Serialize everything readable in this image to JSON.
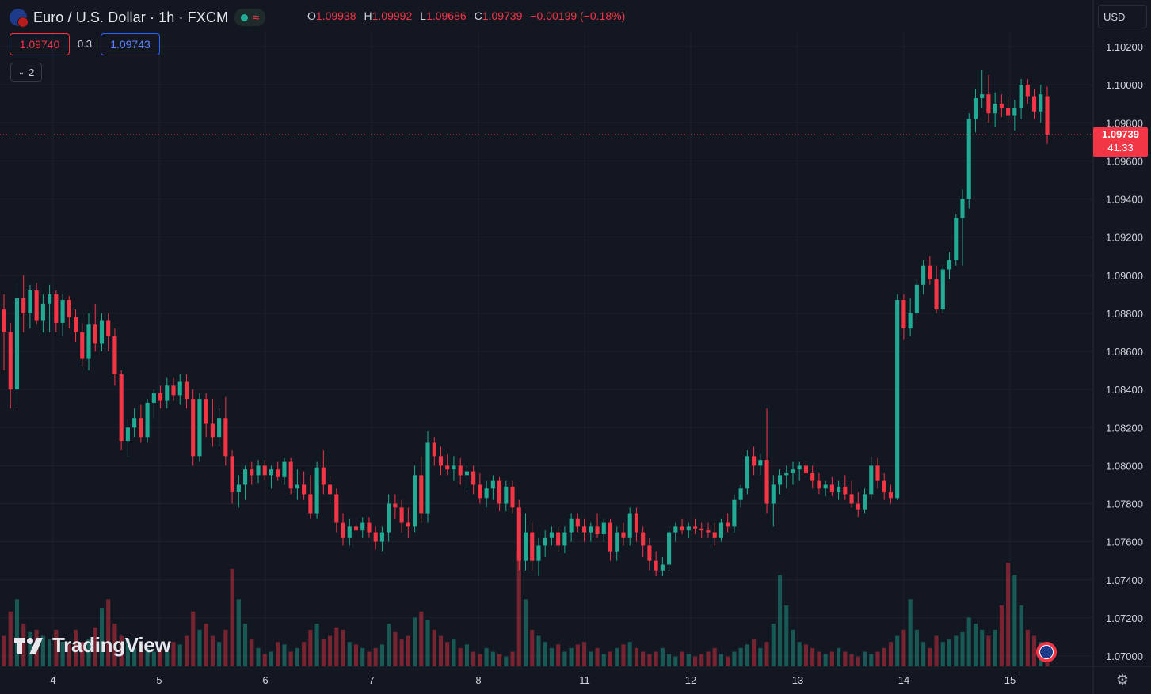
{
  "header": {
    "symbol_title": "Euro / U.S. Dollar · 1h · FXCM",
    "market_status_icon": "green-dot-icon",
    "data_icon": "wave-icon",
    "ohlc": {
      "o_label": "O",
      "o_value": "1.09938",
      "h_label": "H",
      "h_value": "1.09992",
      "l_label": "L",
      "l_value": "1.09686",
      "c_label": "C",
      "c_value": "1.09739",
      "change": "−0.00199 (−0.18%)"
    },
    "sell_price": "1.09740",
    "spread": "0.3",
    "buy_price": "1.09743",
    "indicators_toggle": "2"
  },
  "currency_selector": "USD",
  "last_price": {
    "value": "1.09739",
    "countdown": "41:33"
  },
  "brand": "TradingView",
  "colors": {
    "up": "#22ab94",
    "down": "#f23645",
    "background": "#131722",
    "grid": "#1e222d"
  },
  "chart_data": {
    "type": "candlestick",
    "y_ticks": [
      "1.10200",
      "1.10000",
      "1.09800",
      "1.09600",
      "1.09400",
      "1.09200",
      "1.09000",
      "1.08800",
      "1.08600",
      "1.08400",
      "1.08200",
      "1.08000",
      "1.07800",
      "1.07600",
      "1.07400",
      "1.07200",
      "1.07000"
    ],
    "ylim": [
      1.07,
      1.102
    ],
    "x_ticks": [
      "4",
      "5",
      "6",
      "7",
      "8",
      "11",
      "12",
      "13",
      "14",
      "15"
    ],
    "last_price": 1.09739,
    "candles": [
      {
        "o": 1.0882,
        "h": 1.089,
        "l": 1.085,
        "c": 1.087
      },
      {
        "o": 1.087,
        "h": 1.0875,
        "l": 1.083,
        "c": 1.084
      },
      {
        "o": 1.084,
        "h": 1.0895,
        "l": 1.083,
        "c": 1.0888
      },
      {
        "o": 1.0888,
        "h": 1.09,
        "l": 1.087,
        "c": 1.088
      },
      {
        "o": 1.088,
        "h": 1.0895,
        "l": 1.0872,
        "c": 1.0892
      },
      {
        "o": 1.0892,
        "h": 1.0896,
        "l": 1.0874,
        "c": 1.0876
      },
      {
        "o": 1.0876,
        "h": 1.089,
        "l": 1.087,
        "c": 1.0885
      },
      {
        "o": 1.0885,
        "h": 1.0895,
        "l": 1.087,
        "c": 1.089
      },
      {
        "o": 1.089,
        "h": 1.0892,
        "l": 1.087,
        "c": 1.0875
      },
      {
        "o": 1.0875,
        "h": 1.089,
        "l": 1.0868,
        "c": 1.0887
      },
      {
        "o": 1.0887,
        "h": 1.0889,
        "l": 1.0872,
        "c": 1.0878
      },
      {
        "o": 1.0878,
        "h": 1.0882,
        "l": 1.0865,
        "c": 1.087
      },
      {
        "o": 1.087,
        "h": 1.0875,
        "l": 1.0852,
        "c": 1.0856
      },
      {
        "o": 1.0856,
        "h": 1.088,
        "l": 1.085,
        "c": 1.0874
      },
      {
        "o": 1.0874,
        "h": 1.0885,
        "l": 1.086,
        "c": 1.0864
      },
      {
        "o": 1.0864,
        "h": 1.088,
        "l": 1.086,
        "c": 1.0876
      },
      {
        "o": 1.0876,
        "h": 1.088,
        "l": 1.086,
        "c": 1.0868
      },
      {
        "o": 1.0868,
        "h": 1.0872,
        "l": 1.0842,
        "c": 1.0848
      },
      {
        "o": 1.0848,
        "h": 1.085,
        "l": 1.0808,
        "c": 1.0813
      },
      {
        "o": 1.0813,
        "h": 1.0825,
        "l": 1.0805,
        "c": 1.082
      },
      {
        "o": 1.082,
        "h": 1.083,
        "l": 1.0815,
        "c": 1.0825
      },
      {
        "o": 1.0825,
        "h": 1.0832,
        "l": 1.0812,
        "c": 1.0815
      },
      {
        "o": 1.0815,
        "h": 1.0835,
        "l": 1.0812,
        "c": 1.0833
      },
      {
        "o": 1.0833,
        "h": 1.084,
        "l": 1.0825,
        "c": 1.0838
      },
      {
        "o": 1.0838,
        "h": 1.0842,
        "l": 1.083,
        "c": 1.0834
      },
      {
        "o": 1.0834,
        "h": 1.0846,
        "l": 1.083,
        "c": 1.0842
      },
      {
        "o": 1.0842,
        "h": 1.0846,
        "l": 1.0834,
        "c": 1.0837
      },
      {
        "o": 1.0837,
        "h": 1.0848,
        "l": 1.0832,
        "c": 1.0844
      },
      {
        "o": 1.0844,
        "h": 1.0848,
        "l": 1.083,
        "c": 1.0835
      },
      {
        "o": 1.0835,
        "h": 1.084,
        "l": 1.08,
        "c": 1.0805
      },
      {
        "o": 1.0805,
        "h": 1.0838,
        "l": 1.0802,
        "c": 1.0835
      },
      {
        "o": 1.0835,
        "h": 1.0838,
        "l": 1.0815,
        "c": 1.0822
      },
      {
        "o": 1.0822,
        "h": 1.0835,
        "l": 1.081,
        "c": 1.0815
      },
      {
        "o": 1.0815,
        "h": 1.083,
        "l": 1.081,
        "c": 1.0825
      },
      {
        "o": 1.0825,
        "h": 1.0836,
        "l": 1.08,
        "c": 1.0805
      },
      {
        "o": 1.0805,
        "h": 1.0808,
        "l": 1.078,
        "c": 1.0786
      },
      {
        "o": 1.0786,
        "h": 1.0795,
        "l": 1.0778,
        "c": 1.079
      },
      {
        "o": 1.079,
        "h": 1.08,
        "l": 1.0782,
        "c": 1.0798
      },
      {
        "o": 1.0798,
        "h": 1.0802,
        "l": 1.079,
        "c": 1.0795
      },
      {
        "o": 1.0795,
        "h": 1.0803,
        "l": 1.0791,
        "c": 1.08
      },
      {
        "o": 1.08,
        "h": 1.0803,
        "l": 1.0792,
        "c": 1.0795
      },
      {
        "o": 1.0795,
        "h": 1.08,
        "l": 1.0788,
        "c": 1.0798
      },
      {
        "o": 1.0798,
        "h": 1.0802,
        "l": 1.0792,
        "c": 1.0794
      },
      {
        "o": 1.0794,
        "h": 1.0804,
        "l": 1.079,
        "c": 1.0802
      },
      {
        "o": 1.0802,
        "h": 1.0804,
        "l": 1.0785,
        "c": 1.0788
      },
      {
        "o": 1.0788,
        "h": 1.0798,
        "l": 1.0782,
        "c": 1.079
      },
      {
        "o": 1.079,
        "h": 1.0797,
        "l": 1.0782,
        "c": 1.0785
      },
      {
        "o": 1.0785,
        "h": 1.0795,
        "l": 1.0772,
        "c": 1.0775
      },
      {
        "o": 1.0775,
        "h": 1.0802,
        "l": 1.0772,
        "c": 1.0799
      },
      {
        "o": 1.0799,
        "h": 1.0808,
        "l": 1.0785,
        "c": 1.079
      },
      {
        "o": 1.079,
        "h": 1.0795,
        "l": 1.078,
        "c": 1.0785
      },
      {
        "o": 1.0785,
        "h": 1.0788,
        "l": 1.0765,
        "c": 1.077
      },
      {
        "o": 1.077,
        "h": 1.0775,
        "l": 1.0758,
        "c": 1.0762
      },
      {
        "o": 1.0762,
        "h": 1.0772,
        "l": 1.0758,
        "c": 1.0768
      },
      {
        "o": 1.0768,
        "h": 1.0772,
        "l": 1.0762,
        "c": 1.0766
      },
      {
        "o": 1.0766,
        "h": 1.0773,
        "l": 1.0762,
        "c": 1.077
      },
      {
        "o": 1.077,
        "h": 1.0773,
        "l": 1.0762,
        "c": 1.0765
      },
      {
        "o": 1.0765,
        "h": 1.0768,
        "l": 1.0756,
        "c": 1.076
      },
      {
        "o": 1.076,
        "h": 1.0768,
        "l": 1.0755,
        "c": 1.0765
      },
      {
        "o": 1.0765,
        "h": 1.0785,
        "l": 1.076,
        "c": 1.078
      },
      {
        "o": 1.078,
        "h": 1.0785,
        "l": 1.0772,
        "c": 1.0778
      },
      {
        "o": 1.0778,
        "h": 1.0782,
        "l": 1.0765,
        "c": 1.077
      },
      {
        "o": 1.077,
        "h": 1.0778,
        "l": 1.0762,
        "c": 1.0768
      },
      {
        "o": 1.0768,
        "h": 1.08,
        "l": 1.0765,
        "c": 1.0795
      },
      {
        "o": 1.0795,
        "h": 1.0805,
        "l": 1.077,
        "c": 1.0775
      },
      {
        "o": 1.0775,
        "h": 1.0818,
        "l": 1.077,
        "c": 1.0812
      },
      {
        "o": 1.0812,
        "h": 1.0815,
        "l": 1.08,
        "c": 1.0805
      },
      {
        "o": 1.0805,
        "h": 1.081,
        "l": 1.0795,
        "c": 1.08
      },
      {
        "o": 1.08,
        "h": 1.0806,
        "l": 1.0795,
        "c": 1.0798
      },
      {
        "o": 1.0798,
        "h": 1.0805,
        "l": 1.0792,
        "c": 1.08
      },
      {
        "o": 1.08,
        "h": 1.0804,
        "l": 1.079,
        "c": 1.0795
      },
      {
        "o": 1.0795,
        "h": 1.08,
        "l": 1.0788,
        "c": 1.0797
      },
      {
        "o": 1.0797,
        "h": 1.08,
        "l": 1.0785,
        "c": 1.079
      },
      {
        "o": 1.079,
        "h": 1.0796,
        "l": 1.078,
        "c": 1.0783
      },
      {
        "o": 1.0783,
        "h": 1.0792,
        "l": 1.0778,
        "c": 1.0788
      },
      {
        "o": 1.0788,
        "h": 1.0795,
        "l": 1.0782,
        "c": 1.0792
      },
      {
        "o": 1.0792,
        "h": 1.0794,
        "l": 1.0776,
        "c": 1.078
      },
      {
        "o": 1.078,
        "h": 1.0792,
        "l": 1.0776,
        "c": 1.0789
      },
      {
        "o": 1.0789,
        "h": 1.0792,
        "l": 1.0775,
        "c": 1.0778
      },
      {
        "o": 1.0778,
        "h": 1.0782,
        "l": 1.0745,
        "c": 1.075
      },
      {
        "o": 1.075,
        "h": 1.0775,
        "l": 1.0745,
        "c": 1.0765
      },
      {
        "o": 1.0765,
        "h": 1.077,
        "l": 1.0745,
        "c": 1.075
      },
      {
        "o": 1.075,
        "h": 1.0762,
        "l": 1.0742,
        "c": 1.0758
      },
      {
        "o": 1.0758,
        "h": 1.0766,
        "l": 1.0752,
        "c": 1.0762
      },
      {
        "o": 1.0762,
        "h": 1.0768,
        "l": 1.0758,
        "c": 1.0765
      },
      {
        "o": 1.0765,
        "h": 1.0768,
        "l": 1.0755,
        "c": 1.0758
      },
      {
        "o": 1.0758,
        "h": 1.0768,
        "l": 1.0754,
        "c": 1.0765
      },
      {
        "o": 1.0765,
        "h": 1.0775,
        "l": 1.076,
        "c": 1.0772
      },
      {
        "o": 1.0772,
        "h": 1.0775,
        "l": 1.0765,
        "c": 1.0768
      },
      {
        "o": 1.0768,
        "h": 1.0772,
        "l": 1.076,
        "c": 1.0765
      },
      {
        "o": 1.0765,
        "h": 1.077,
        "l": 1.076,
        "c": 1.0768
      },
      {
        "o": 1.0768,
        "h": 1.0775,
        "l": 1.0762,
        "c": 1.0764
      },
      {
        "o": 1.0764,
        "h": 1.0772,
        "l": 1.076,
        "c": 1.077
      },
      {
        "o": 1.077,
        "h": 1.0772,
        "l": 1.075,
        "c": 1.0755
      },
      {
        "o": 1.0755,
        "h": 1.0768,
        "l": 1.075,
        "c": 1.0765
      },
      {
        "o": 1.0765,
        "h": 1.077,
        "l": 1.0758,
        "c": 1.0762
      },
      {
        "o": 1.0762,
        "h": 1.0778,
        "l": 1.0758,
        "c": 1.0775
      },
      {
        "o": 1.0775,
        "h": 1.0778,
        "l": 1.076,
        "c": 1.0765
      },
      {
        "o": 1.0765,
        "h": 1.0768,
        "l": 1.0752,
        "c": 1.0758
      },
      {
        "o": 1.0758,
        "h": 1.0762,
        "l": 1.0745,
        "c": 1.075
      },
      {
        "o": 1.075,
        "h": 1.0755,
        "l": 1.0742,
        "c": 1.0745
      },
      {
        "o": 1.0745,
        "h": 1.0752,
        "l": 1.0742,
        "c": 1.0748
      },
      {
        "o": 1.0748,
        "h": 1.0768,
        "l": 1.0745,
        "c": 1.0765
      },
      {
        "o": 1.0765,
        "h": 1.077,
        "l": 1.076,
        "c": 1.0768
      },
      {
        "o": 1.0768,
        "h": 1.0772,
        "l": 1.0764,
        "c": 1.0766
      },
      {
        "o": 1.0766,
        "h": 1.077,
        "l": 1.0762,
        "c": 1.0768
      },
      {
        "o": 1.0768,
        "h": 1.0772,
        "l": 1.0764,
        "c": 1.0767
      },
      {
        "o": 1.0767,
        "h": 1.077,
        "l": 1.0762,
        "c": 1.0766
      },
      {
        "o": 1.0766,
        "h": 1.077,
        "l": 1.0762,
        "c": 1.0765
      },
      {
        "o": 1.0765,
        "h": 1.077,
        "l": 1.0758,
        "c": 1.0762
      },
      {
        "o": 1.0762,
        "h": 1.0772,
        "l": 1.076,
        "c": 1.077
      },
      {
        "o": 1.077,
        "h": 1.0775,
        "l": 1.0765,
        "c": 1.0768
      },
      {
        "o": 1.0768,
        "h": 1.0785,
        "l": 1.0765,
        "c": 1.0782
      },
      {
        "o": 1.0782,
        "h": 1.079,
        "l": 1.0778,
        "c": 1.0788
      },
      {
        "o": 1.0788,
        "h": 1.0808,
        "l": 1.0785,
        "c": 1.0805
      },
      {
        "o": 1.0805,
        "h": 1.081,
        "l": 1.0795,
        "c": 1.08
      },
      {
        "o": 1.08,
        "h": 1.0806,
        "l": 1.0795,
        "c": 1.0803
      },
      {
        "o": 1.0803,
        "h": 1.083,
        "l": 1.0775,
        "c": 1.078
      },
      {
        "o": 1.078,
        "h": 1.0795,
        "l": 1.0768,
        "c": 1.079
      },
      {
        "o": 1.079,
        "h": 1.0798,
        "l": 1.0785,
        "c": 1.0795
      },
      {
        "o": 1.0795,
        "h": 1.08,
        "l": 1.0788,
        "c": 1.0796
      },
      {
        "o": 1.0796,
        "h": 1.0802,
        "l": 1.079,
        "c": 1.0798
      },
      {
        "o": 1.0798,
        "h": 1.0802,
        "l": 1.0792,
        "c": 1.08
      },
      {
        "o": 1.08,
        "h": 1.0802,
        "l": 1.0794,
        "c": 1.0796
      },
      {
        "o": 1.0796,
        "h": 1.08,
        "l": 1.0788,
        "c": 1.0792
      },
      {
        "o": 1.0792,
        "h": 1.0796,
        "l": 1.0785,
        "c": 1.0788
      },
      {
        "o": 1.0788,
        "h": 1.0792,
        "l": 1.0784,
        "c": 1.079
      },
      {
        "o": 1.079,
        "h": 1.0794,
        "l": 1.0784,
        "c": 1.0786
      },
      {
        "o": 1.0786,
        "h": 1.0792,
        "l": 1.0782,
        "c": 1.0789
      },
      {
        "o": 1.0789,
        "h": 1.0795,
        "l": 1.0782,
        "c": 1.0785
      },
      {
        "o": 1.0785,
        "h": 1.0792,
        "l": 1.0778,
        "c": 1.078
      },
      {
        "o": 1.078,
        "h": 1.0786,
        "l": 1.0773,
        "c": 1.0777
      },
      {
        "o": 1.0777,
        "h": 1.0788,
        "l": 1.0775,
        "c": 1.0785
      },
      {
        "o": 1.0785,
        "h": 1.0805,
        "l": 1.0782,
        "c": 1.08
      },
      {
        "o": 1.08,
        "h": 1.0804,
        "l": 1.0788,
        "c": 1.0792
      },
      {
        "o": 1.0792,
        "h": 1.0796,
        "l": 1.0782,
        "c": 1.0786
      },
      {
        "o": 1.0786,
        "h": 1.079,
        "l": 1.078,
        "c": 1.0783
      },
      {
        "o": 1.0783,
        "h": 1.089,
        "l": 1.0782,
        "c": 1.0887
      },
      {
        "o": 1.0887,
        "h": 1.089,
        "l": 1.0866,
        "c": 1.0872
      },
      {
        "o": 1.0872,
        "h": 1.0888,
        "l": 1.0868,
        "c": 1.088
      },
      {
        "o": 1.088,
        "h": 1.0898,
        "l": 1.0876,
        "c": 1.0895
      },
      {
        "o": 1.0895,
        "h": 1.0908,
        "l": 1.089,
        "c": 1.0905
      },
      {
        "o": 1.0905,
        "h": 1.091,
        "l": 1.0895,
        "c": 1.0898
      },
      {
        "o": 1.0898,
        "h": 1.0905,
        "l": 1.088,
        "c": 1.0882
      },
      {
        "o": 1.0882,
        "h": 1.0905,
        "l": 1.088,
        "c": 1.0903
      },
      {
        "o": 1.0903,
        "h": 1.0912,
        "l": 1.0898,
        "c": 1.0908
      },
      {
        "o": 1.0908,
        "h": 1.0932,
        "l": 1.0905,
        "c": 1.093
      },
      {
        "o": 1.093,
        "h": 1.0945,
        "l": 1.0905,
        "c": 1.094
      },
      {
        "o": 1.094,
        "h": 1.0985,
        "l": 1.0935,
        "c": 1.0982
      },
      {
        "o": 1.0982,
        "h": 1.0998,
        "l": 1.0975,
        "c": 1.0993
      },
      {
        "o": 1.0993,
        "h": 1.1008,
        "l": 1.0988,
        "c": 1.0995
      },
      {
        "o": 1.0995,
        "h": 1.1005,
        "l": 1.098,
        "c": 1.0985
      },
      {
        "o": 1.0985,
        "h": 1.0996,
        "l": 1.0978,
        "c": 1.099
      },
      {
        "o": 1.099,
        "h": 1.0995,
        "l": 1.0983,
        "c": 1.0988
      },
      {
        "o": 1.0988,
        "h": 1.0994,
        "l": 1.098,
        "c": 1.0984
      },
      {
        "o": 1.0984,
        "h": 1.0992,
        "l": 1.0976,
        "c": 1.0988
      },
      {
        "o": 1.0988,
        "h": 1.1003,
        "l": 1.0982,
        "c": 1.1
      },
      {
        "o": 1.1,
        "h": 1.1003,
        "l": 1.099,
        "c": 1.0994
      },
      {
        "o": 1.0994,
        "h": 1.0998,
        "l": 1.0982,
        "c": 1.0986
      },
      {
        "o": 1.0986,
        "h": 1.1,
        "l": 1.098,
        "c": 1.0995
      },
      {
        "o": 1.0994,
        "h": 1.0999,
        "l": 1.0969,
        "c": 1.09739
      }
    ],
    "volumes": [
      0.25,
      0.45,
      0.55,
      0.35,
      0.28,
      0.3,
      0.25,
      0.22,
      0.3,
      0.2,
      0.18,
      0.3,
      0.2,
      0.22,
      0.32,
      0.48,
      0.55,
      0.35,
      0.25,
      0.22,
      0.15,
      0.18,
      0.15,
      0.12,
      0.15,
      0.12,
      0.2,
      0.18,
      0.25,
      0.45,
      0.3,
      0.35,
      0.25,
      0.2,
      0.3,
      0.8,
      0.55,
      0.35,
      0.22,
      0.15,
      0.1,
      0.12,
      0.2,
      0.18,
      0.12,
      0.15,
      0.2,
      0.3,
      0.35,
      0.22,
      0.25,
      0.32,
      0.3,
      0.2,
      0.18,
      0.15,
      0.12,
      0.15,
      0.18,
      0.35,
      0.28,
      0.22,
      0.25,
      0.4,
      0.45,
      0.38,
      0.3,
      0.25,
      0.2,
      0.22,
      0.15,
      0.18,
      0.12,
      0.1,
      0.15,
      0.12,
      0.1,
      0.08,
      0.12,
      0.95,
      0.55,
      0.3,
      0.25,
      0.2,
      0.15,
      0.18,
      0.12,
      0.15,
      0.18,
      0.2,
      0.12,
      0.15,
      0.1,
      0.12,
      0.15,
      0.18,
      0.2,
      0.15,
      0.12,
      0.1,
      0.12,
      0.15,
      0.1,
      0.08,
      0.12,
      0.1,
      0.08,
      0.1,
      0.12,
      0.15,
      0.1,
      0.08,
      0.12,
      0.15,
      0.18,
      0.22,
      0.15,
      0.2,
      0.35,
      0.75,
      0.5,
      0.3,
      0.2,
      0.18,
      0.15,
      0.12,
      0.1,
      0.12,
      0.15,
      0.12,
      0.1,
      0.08,
      0.12,
      0.1,
      0.12,
      0.15,
      0.2,
      0.25,
      0.3,
      0.55,
      0.3,
      0.2,
      0.15,
      0.25,
      0.2,
      0.22,
      0.25,
      0.28,
      0.4,
      0.35,
      0.3,
      0.25,
      0.3,
      0.5,
      0.85,
      0.75,
      0.5,
      0.3,
      0.25,
      0.2,
      0.18,
      0.15,
      0.18,
      0.15,
      0.12,
      0.15,
      0.18,
      0.22
    ],
    "volume_max_label": null
  }
}
